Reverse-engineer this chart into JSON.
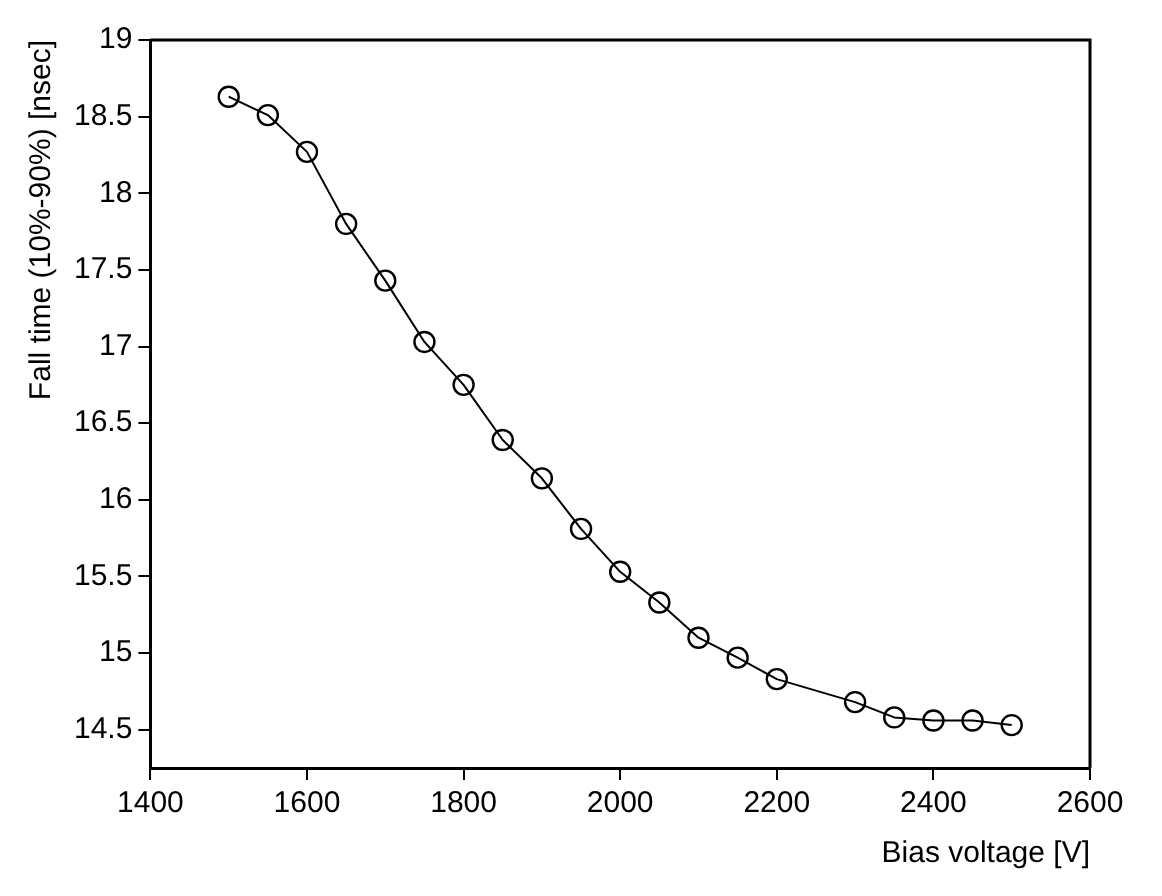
{
  "chart_data": {
    "type": "line",
    "xlabel": "Bias voltage [V]",
    "ylabel": "Fall time (10%-90%) [nsec]",
    "x": [
      1500,
      1550,
      1600,
      1650,
      1700,
      1750,
      1800,
      1850,
      1900,
      1950,
      2000,
      2050,
      2100,
      2150,
      2200,
      2300,
      2350,
      2400,
      2450,
      2500
    ],
    "series": [
      {
        "color": "#000000",
        "values": [
          18.63,
          18.51,
          18.27,
          17.8,
          17.43,
          17.03,
          16.75,
          16.39,
          16.14,
          15.81,
          15.53,
          15.33,
          15.1,
          14.97,
          14.83,
          14.68,
          14.58,
          14.56,
          14.56,
          14.53
        ]
      }
    ],
    "xlim": [
      1400,
      2600
    ],
    "xticks": [
      1400,
      1600,
      1800,
      2000,
      2200,
      2400,
      2600
    ],
    "ylim": [
      14.25,
      19
    ],
    "yticks": [
      14.5,
      15,
      15.5,
      16,
      16.5,
      17,
      17.5,
      18,
      18.5,
      19
    ],
    "grid": false,
    "legend": false,
    "marker": "circle",
    "line_style": "solid"
  }
}
